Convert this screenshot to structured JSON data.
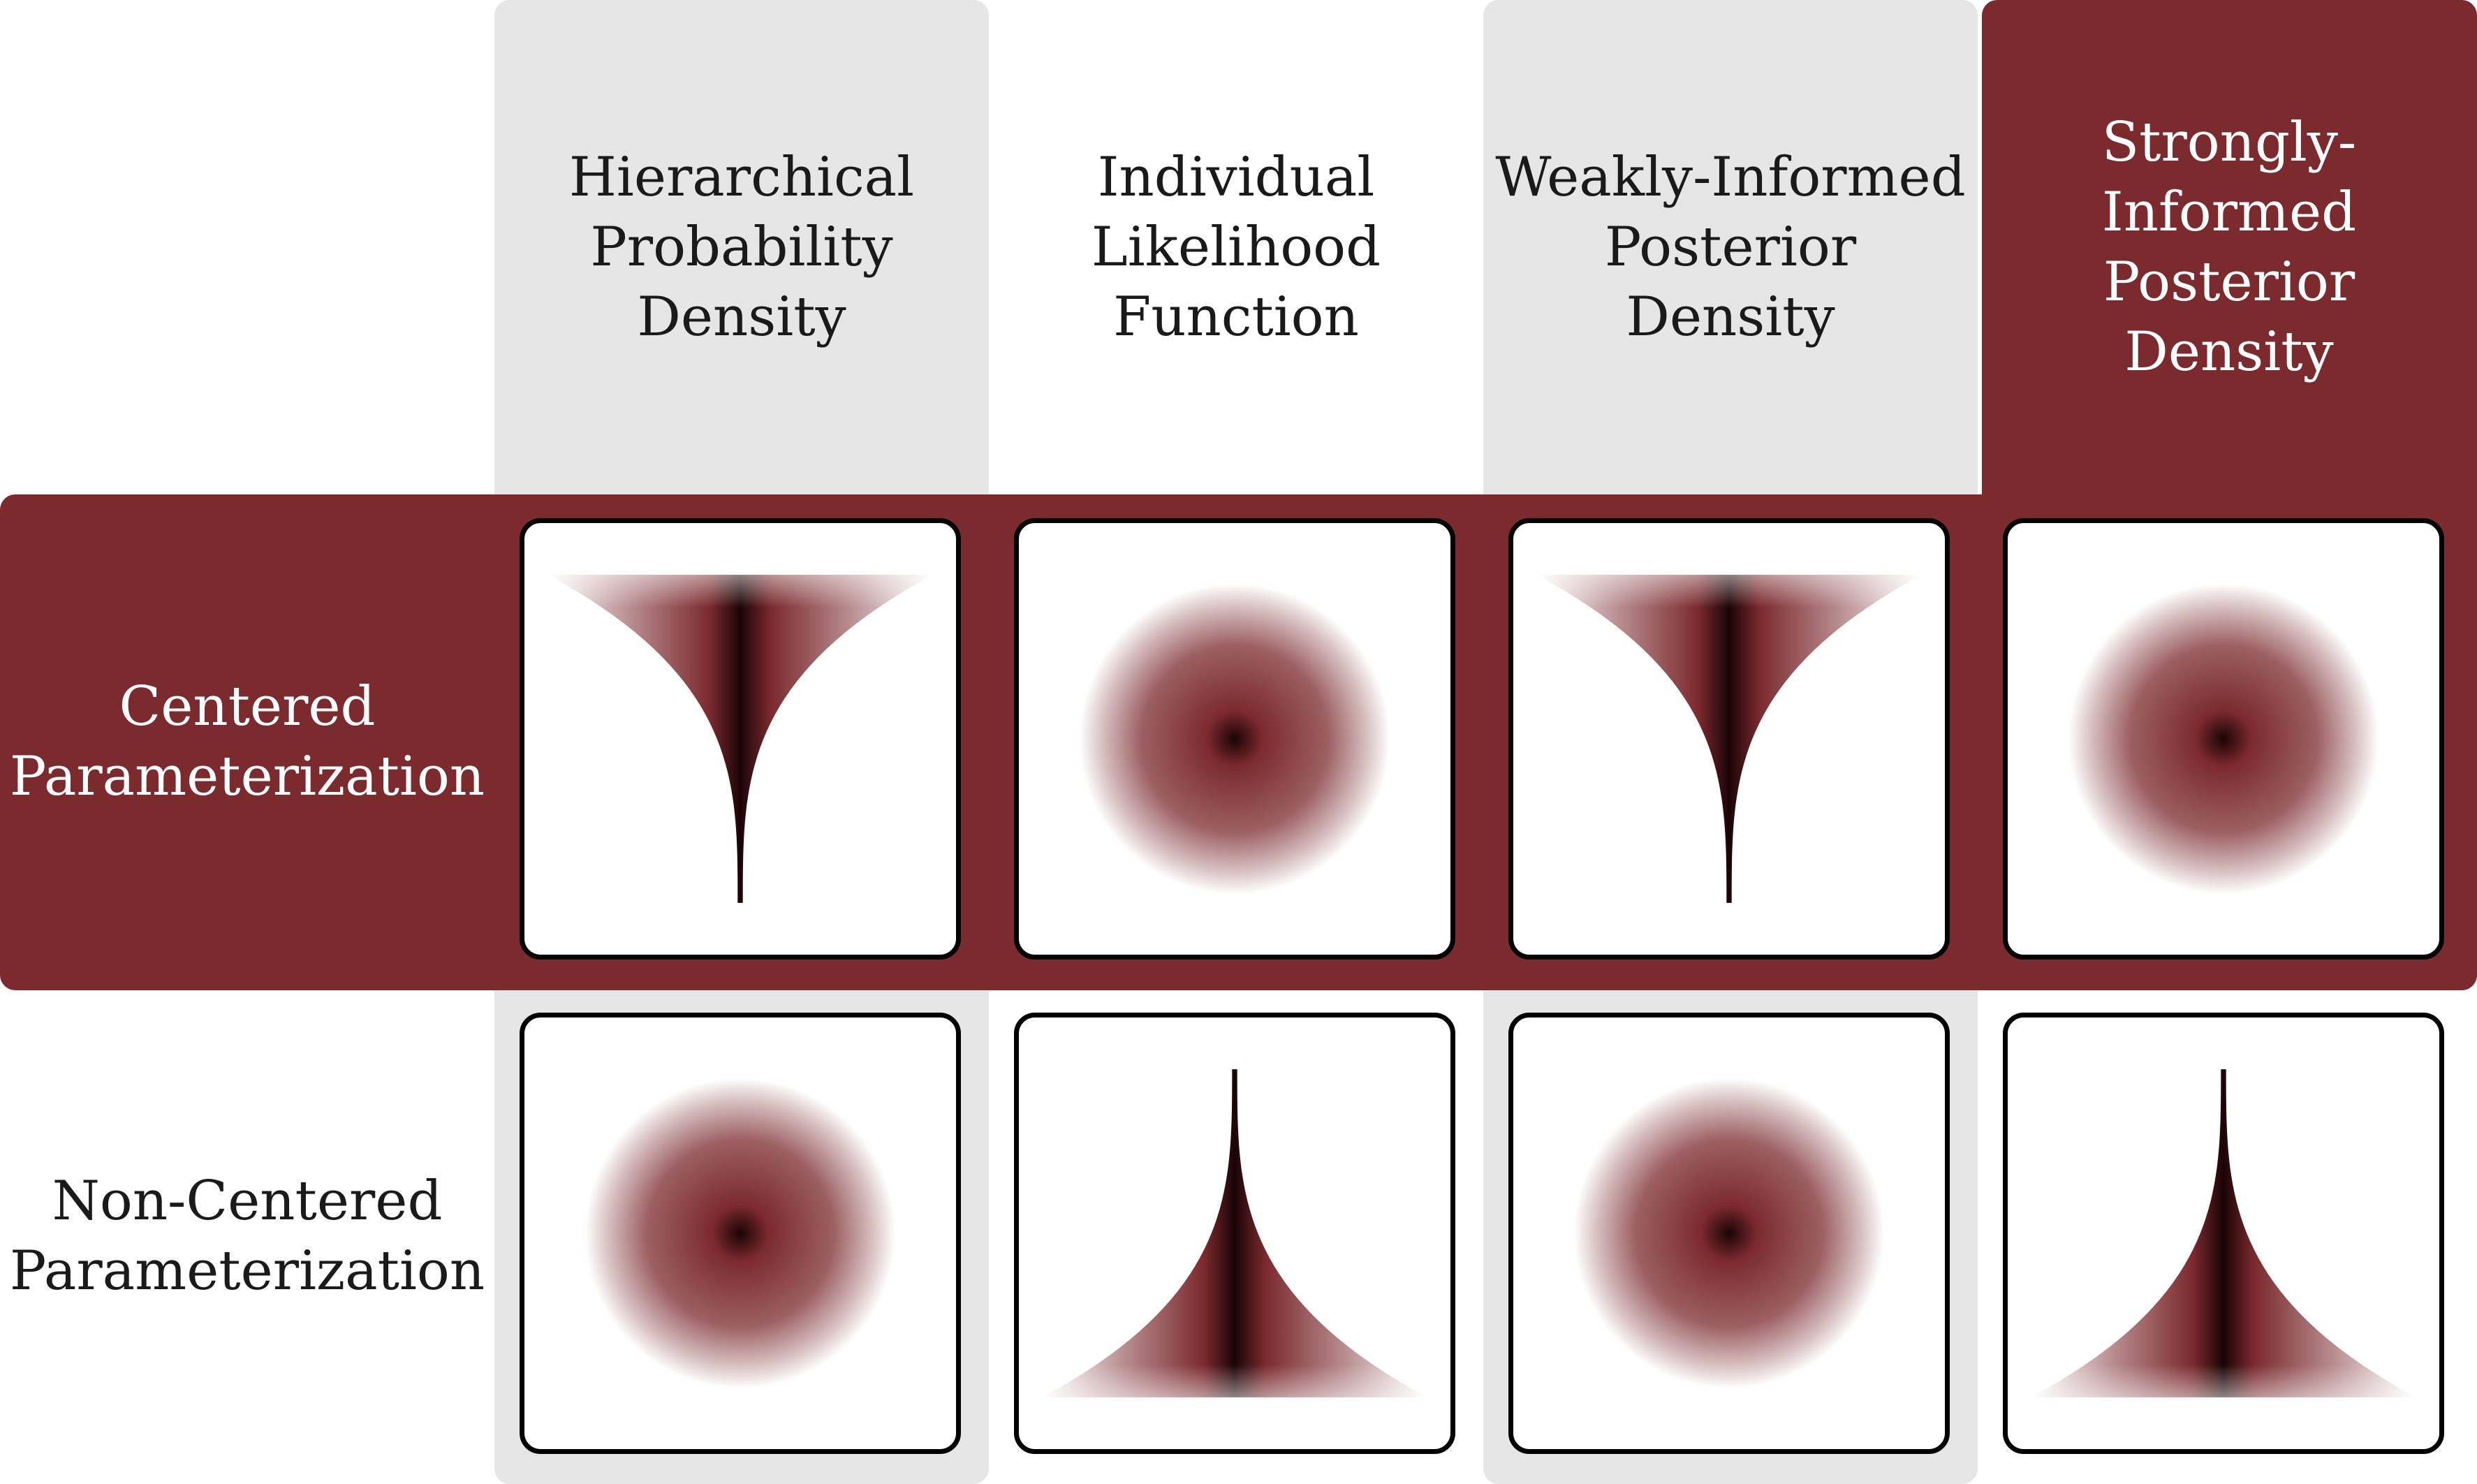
{
  "columns": [
    {
      "label": "Hierarchical\nProbability\nDensity"
    },
    {
      "label": "Individual\nLikelihood\nFunction"
    },
    {
      "label": "Weakly-Informed\nPosterior\nDensity"
    },
    {
      "label": "Strongly-Informed\nPosterior\nDensity"
    }
  ],
  "rows": [
    {
      "label": "Centered\nParameterization",
      "panels": [
        "funnel-down",
        "gaussian",
        "funnel-down",
        "gaussian"
      ]
    },
    {
      "label": "Non-Centered\nParameterization",
      "panels": [
        "gaussian",
        "funnel-up",
        "gaussian",
        "funnel-up"
      ]
    }
  ],
  "colors": {
    "accent": "#7b2a2e",
    "core": "#1a0406",
    "highlight_bg": "#e6e6e6",
    "frame": "#000000"
  }
}
